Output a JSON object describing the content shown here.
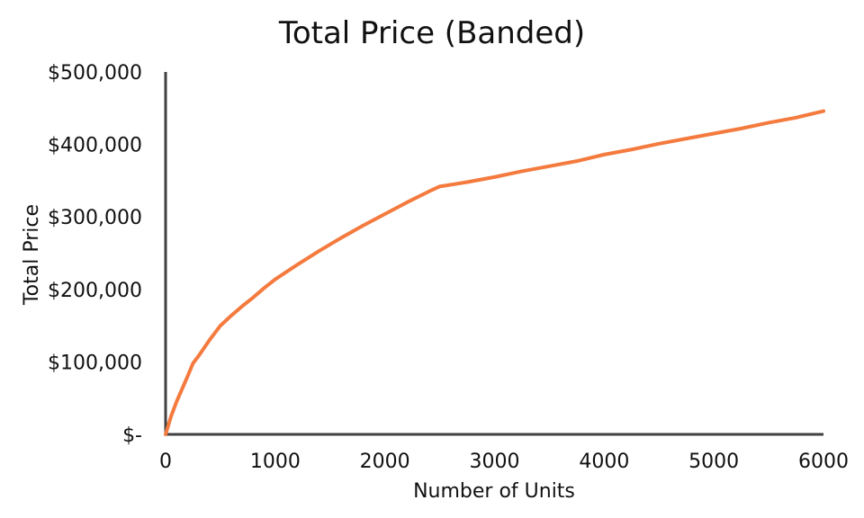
{
  "chart_data": {
    "type": "line",
    "title": "Total Price (Banded)",
    "xlabel": "Number of Units",
    "ylabel": "Total Price",
    "xlim": [
      0,
      6000
    ],
    "ylim": [
      0,
      500000
    ],
    "x_ticks": [
      0,
      1000,
      2000,
      3000,
      4000,
      5000,
      6000
    ],
    "x_tick_labels": [
      "0",
      "1000",
      "2000",
      "3000",
      "4000",
      "5000",
      "6000"
    ],
    "y_ticks": [
      0,
      100000,
      200000,
      300000,
      400000,
      500000
    ],
    "y_tick_labels": [
      "$-",
      "$100,000",
      "$200,000",
      "$300,000",
      "$400,000",
      "$500,000"
    ],
    "grid": false,
    "legend": "none",
    "series_color": "#F47A3E",
    "axis_color": "#404040",
    "series": [
      {
        "x": [
          0,
          50,
          100,
          200,
          250,
          300,
          400,
          500,
          600,
          700,
          800,
          900,
          1000,
          1200,
          1400,
          1600,
          1800,
          2000,
          2200,
          2400,
          2500,
          2750,
          3000,
          3250,
          3500,
          3750,
          4000,
          4250,
          4500,
          4750,
          5000,
          5250,
          5500,
          5750,
          6000
        ],
        "y": [
          0,
          25000,
          45000,
          80000,
          98000,
          108000,
          130000,
          150000,
          164000,
          177000,
          189000,
          202000,
          214000,
          234000,
          253000,
          271000,
          288000,
          304000,
          320000,
          335000,
          342000,
          348000,
          355000,
          363000,
          370000,
          377000,
          386000,
          393000,
          401000,
          408000,
          415000,
          422000,
          430000,
          437000,
          446000
        ]
      }
    ]
  }
}
